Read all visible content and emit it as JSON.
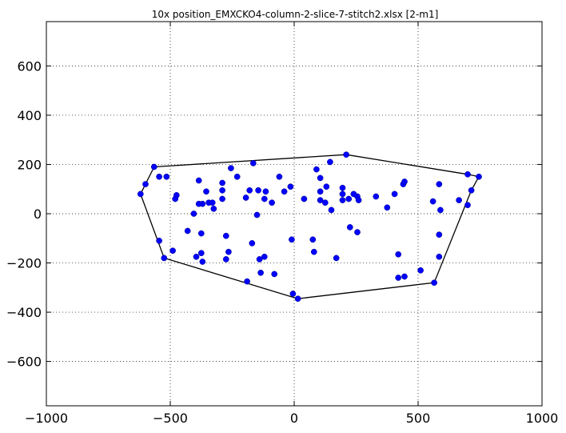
{
  "chart_data": {
    "type": "scatter",
    "title": "10x position_EMXCKO4-column-2-slice-7-stitch2.xlsx   [2-m1]",
    "xlabel": "",
    "ylabel": "",
    "xlim": [
      -1000,
      1000
    ],
    "ylim": [
      -780,
      780
    ],
    "xticks": [
      -1000,
      -500,
      0,
      500,
      1000
    ],
    "yticks": [
      -600,
      -400,
      -200,
      0,
      200,
      400,
      600
    ],
    "xtick_labels": [
      "−1000",
      "−500",
      "0",
      "500",
      "1000"
    ],
    "ytick_labels": [
      "−600",
      "−400",
      "−200",
      "0",
      "200",
      "400",
      "600"
    ],
    "grid": true,
    "grid_style": "dotted",
    "point_color": "#0000ff",
    "hull_color": "#000000",
    "points": [
      [
        210,
        240
      ],
      [
        -565,
        190
      ],
      [
        -165,
        205
      ],
      [
        -545,
        150
      ],
      [
        -515,
        150
      ],
      [
        -600,
        120
      ],
      [
        -620,
        80
      ],
      [
        -475,
        75
      ],
      [
        -480,
        60
      ],
      [
        -385,
        135
      ],
      [
        -355,
        90
      ],
      [
        -345,
        45
      ],
      [
        -370,
        40
      ],
      [
        -385,
        40
      ],
      [
        -330,
        45
      ],
      [
        -325,
        20
      ],
      [
        -405,
        0
      ],
      [
        -290,
        125
      ],
      [
        -290,
        95
      ],
      [
        -290,
        60
      ],
      [
        -255,
        185
      ],
      [
        -230,
        150
      ],
      [
        -195,
        65
      ],
      [
        -180,
        95
      ],
      [
        -145,
        95
      ],
      [
        -120,
        60
      ],
      [
        -90,
        45
      ],
      [
        -115,
        90
      ],
      [
        -150,
        -5
      ],
      [
        -60,
        150
      ],
      [
        -40,
        90
      ],
      [
        -15,
        110
      ],
      [
        40,
        60
      ],
      [
        90,
        180
      ],
      [
        105,
        145
      ],
      [
        105,
        90
      ],
      [
        105,
        55
      ],
      [
        130,
        110
      ],
      [
        125,
        45
      ],
      [
        145,
        210
      ],
      [
        150,
        15
      ],
      [
        195,
        105
      ],
      [
        195,
        80
      ],
      [
        195,
        55
      ],
      [
        220,
        60
      ],
      [
        240,
        80
      ],
      [
        255,
        70
      ],
      [
        260,
        55
      ],
      [
        330,
        70
      ],
      [
        375,
        25
      ],
      [
        405,
        80
      ],
      [
        440,
        120
      ],
      [
        445,
        130
      ],
      [
        560,
        50
      ],
      [
        585,
        120
      ],
      [
        590,
        15
      ],
      [
        665,
        55
      ],
      [
        700,
        160
      ],
      [
        715,
        95
      ],
      [
        745,
        150
      ],
      [
        700,
        35
      ],
      [
        -430,
        -70
      ],
      [
        -375,
        -80
      ],
      [
        -275,
        -90
      ],
      [
        -545,
        -110
      ],
      [
        -525,
        -180
      ],
      [
        -490,
        -150
      ],
      [
        -395,
        -175
      ],
      [
        -375,
        -160
      ],
      [
        -370,
        -195
      ],
      [
        -265,
        -155
      ],
      [
        -275,
        -185
      ],
      [
        -170,
        -120
      ],
      [
        -140,
        -185
      ],
      [
        -120,
        -175
      ],
      [
        -135,
        -240
      ],
      [
        -80,
        -245
      ],
      [
        -190,
        -275
      ],
      [
        -10,
        -105
      ],
      [
        75,
        -105
      ],
      [
        80,
        -155
      ],
      [
        170,
        -180
      ],
      [
        225,
        -55
      ],
      [
        255,
        -75
      ],
      [
        420,
        -165
      ],
      [
        420,
        -260
      ],
      [
        445,
        -255
      ],
      [
        510,
        -230
      ],
      [
        565,
        -280
      ],
      [
        585,
        -85
      ],
      [
        585,
        -175
      ],
      [
        -5,
        -325
      ],
      [
        15,
        -345
      ]
    ],
    "hull": [
      [
        -565,
        190
      ],
      [
        210,
        240
      ],
      [
        700,
        160
      ],
      [
        745,
        150
      ],
      [
        715,
        95
      ],
      [
        565,
        -280
      ],
      [
        15,
        -345
      ],
      [
        -525,
        -180
      ],
      [
        -620,
        80
      ]
    ]
  }
}
